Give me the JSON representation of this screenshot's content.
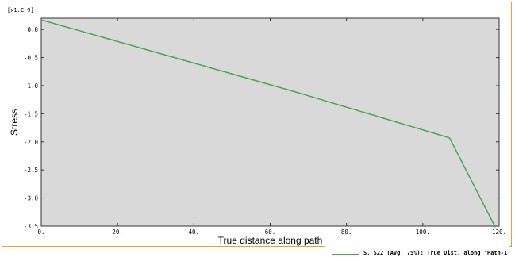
{
  "chart_data": {
    "type": "line",
    "scale_label": "[x1.E-9]",
    "xlabel": "True distance along path",
    "ylabel": "Stress",
    "xlim": [
      0,
      120
    ],
    "ylim": [
      -3.5,
      0.2
    ],
    "x_ticks": [
      0,
      20,
      40,
      60,
      80,
      100,
      120
    ],
    "x_tick_labels": [
      "0.",
      "20.",
      "40.",
      "60.",
      "80.",
      "100.",
      "120."
    ],
    "y_ticks": [
      0.0,
      -0.5,
      -1.0,
      -1.5,
      -2.0,
      -2.5,
      -3.0,
      -3.5
    ],
    "y_tick_labels": [
      "0.0",
      "-0.5",
      "-1.0",
      "-1.5",
      "-2.0",
      "-2.5",
      "-3.0",
      "-3.5"
    ],
    "grid": false,
    "legend_position": "bottom-right",
    "series": [
      {
        "name": "S, S22 (Avg: 75%): True Dist. along 'Path-1'",
        "color": "#4aa84a",
        "x": [
          0,
          65,
          107,
          119
        ],
        "y": [
          0.17,
          -1.08,
          -1.93,
          -3.52
        ]
      }
    ]
  }
}
